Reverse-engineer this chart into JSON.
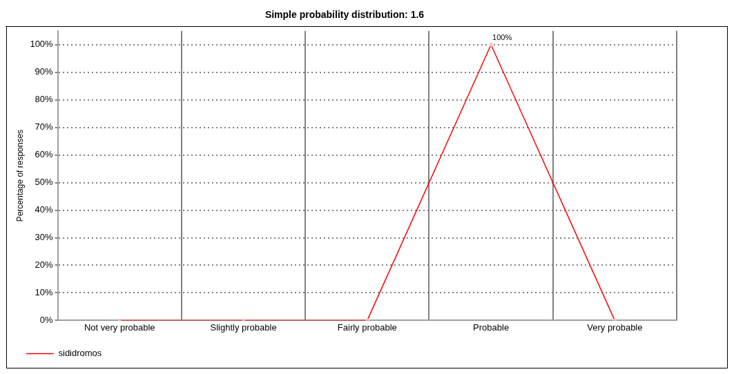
{
  "chart_data": {
    "type": "line",
    "title": "Simple probability distribution: 1.6",
    "ylabel": "Percentage of responses",
    "categories": [
      "Not very probable",
      "Slightly probable",
      "Fairly probable",
      "Probable",
      "Very probable"
    ],
    "series": [
      {
        "name": "sididromos",
        "color": "#ff0000",
        "values": [
          0,
          0,
          0,
          100,
          0
        ],
        "value_labels": [
          null,
          null,
          null,
          "100%",
          null
        ]
      }
    ],
    "ylim": [
      0,
      105
    ],
    "yticks": [
      {
        "value": 0,
        "label": "0%"
      },
      {
        "value": 10,
        "label": "10%"
      },
      {
        "value": 20,
        "label": "20%"
      },
      {
        "value": 30,
        "label": "30%"
      },
      {
        "value": 40,
        "label": "40%"
      },
      {
        "value": 50,
        "label": "50%"
      },
      {
        "value": 60,
        "label": "60%"
      },
      {
        "value": 70,
        "label": "70%"
      },
      {
        "value": 80,
        "label": "80%"
      },
      {
        "value": 90,
        "label": "90%"
      },
      {
        "value": 100,
        "label": "100%"
      }
    ],
    "grid": true,
    "legend": "bottom left",
    "marker": "square",
    "line_style": "solid"
  }
}
